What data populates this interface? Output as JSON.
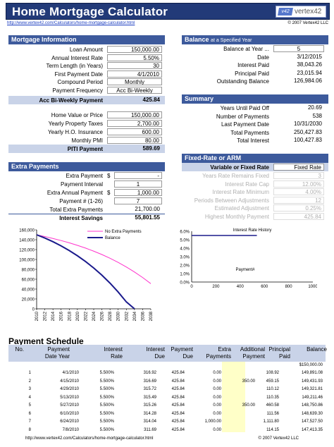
{
  "app": {
    "title": "Home Mortgage Calculator",
    "logo_text": "vertex42",
    "logo_mark": "v42",
    "url": "http://www.vertex42.com/Calculators/home-mortgage-calculator.html",
    "copyright": "© 2007 Vertex42 LLC"
  },
  "mortgage_info": {
    "header": "Mortgage Information",
    "rows": [
      {
        "label": "Loan Amount",
        "value": "150,000.00"
      },
      {
        "label": "Annual Interest Rate",
        "value": "5.50%"
      },
      {
        "label": "Term Length (in Years)",
        "value": "30"
      },
      {
        "label": "First Payment Date",
        "value": "4/1/2010"
      },
      {
        "label": "Compound Period",
        "value": "Monthly"
      },
      {
        "label": "Payment Frequency",
        "value": "Acc Bi-Weekly"
      }
    ],
    "payment_label": "Acc Bi-Weekly Payment",
    "payment_value": "425.84"
  },
  "home_costs": {
    "rows": [
      {
        "label": "Home Value or Price",
        "value": "150,000.00"
      },
      {
        "label": "Yearly Property Taxes",
        "value": "2,700.00"
      },
      {
        "label": "Yearly H.O. Insurance",
        "value": "600.00"
      },
      {
        "label": "Monthly PMI",
        "value": "80.00"
      }
    ],
    "piti_label": "PITI Payment",
    "piti_value": "589.69"
  },
  "extra_payments": {
    "header": "Extra Payments",
    "rows": [
      {
        "label": "Extra Payment",
        "currency": "$",
        "value": "-"
      },
      {
        "label": "Payment Interval",
        "currency": "",
        "value": "1"
      },
      {
        "label": "Extra Annual Payment",
        "currency": "$",
        "value": "1,000.00"
      },
      {
        "label": "Payment # (1-26)",
        "currency": "",
        "value": "7"
      }
    ],
    "total_label": "Total Extra Payments",
    "total_value": "21,700.00",
    "savings_label": "Interest Savings",
    "savings_value": "55,801.55"
  },
  "balance": {
    "header": "Balance",
    "header_small": "at a Specified Year",
    "rows": [
      {
        "label": "Balance at Year ...",
        "value": "5"
      },
      {
        "label": "Date",
        "value": "3/12/2015"
      },
      {
        "label": "Interest Paid",
        "value": "38,043.26"
      },
      {
        "label": "Principal Paid",
        "value": "23,015.94"
      },
      {
        "label": "Outstanding Balance",
        "value": "126,984.06"
      }
    ]
  },
  "summary": {
    "header": "Summary",
    "rows": [
      {
        "label": "Years Until Paid Off",
        "value": "20.69"
      },
      {
        "label": "Number of Payments",
        "value": "538"
      },
      {
        "label": "Last Payment Date",
        "value": "10/31/2030"
      },
      {
        "label": "Total Payments",
        "value": "250,427.83"
      },
      {
        "label": "Total Interest",
        "value": "100,427.83"
      }
    ]
  },
  "arm": {
    "header": "Fixed-Rate or ARM",
    "type_label": "Variable or Fixed Rate",
    "type_value": "Fixed Rate",
    "rows": [
      {
        "label": "Years Rate Remains Fixed",
        "value": "3"
      },
      {
        "label": "Interest Rate Cap",
        "value": "12.00%"
      },
      {
        "label": "Interest Rate Minimum",
        "value": "4.00%"
      },
      {
        "label": "Periods Between Adjustments",
        "value": "12"
      },
      {
        "label": "Estimated Adjustment",
        "value": "0.25%"
      },
      {
        "label": "Highest Monthly Payment",
        "value": "425.84"
      }
    ]
  },
  "chart_data": [
    {
      "type": "line",
      "title": "",
      "x": [
        "2010",
        "2012",
        "2014",
        "2016",
        "2018",
        "2020",
        "2022",
        "2024",
        "2026",
        "2028",
        "2030",
        "2032",
        "2034",
        "2036",
        "2038"
      ],
      "series": [
        {
          "name": "No Extra Payments",
          "color": "#ff33cc",
          "values": [
            150000,
            146500,
            142500,
            138300,
            133700,
            128600,
            123000,
            116800,
            110000,
            102400,
            94000,
            84800,
            74600,
            63400,
            51000
          ]
        },
        {
          "name": "Balance",
          "color": "#1a1a8c",
          "values": [
            150000,
            143500,
            136000,
            127500,
            118000,
            107500,
            95800,
            82700,
            68200,
            52000,
            34000,
            14000,
            0,
            null,
            null
          ]
        }
      ],
      "ylim": [
        0,
        160000
      ],
      "yticks": [
        "0",
        "20,000",
        "40,000",
        "60,000",
        "80,000",
        "100,000",
        "120,000",
        "140,000",
        "160,000"
      ],
      "legend": "top-right"
    },
    {
      "type": "line",
      "title": "Interest Rate History",
      "xlabel": "Payment#",
      "ylim": [
        0,
        6
      ],
      "yticks": [
        "0.0%",
        "1.0%",
        "2.0%",
        "3.0%",
        "4.0%",
        "5.0%",
        "6.0%"
      ],
      "xticks": [
        "0",
        "200",
        "400",
        "600",
        "800",
        "1000"
      ],
      "series": [
        {
          "name": "",
          "color": "#1a1a8c",
          "x": [
            0,
            538
          ],
          "values": [
            5.5,
            5.5
          ]
        }
      ]
    }
  ],
  "schedule": {
    "title": "Payment Schedule",
    "headers": [
      {
        "line1": "",
        "line2": "No."
      },
      {
        "line1": "Payment",
        "line2": "Date  Year"
      },
      {
        "line1": "Interest",
        "line2": "Rate"
      },
      {
        "line1": "Interest",
        "line2": "Due"
      },
      {
        "line1": "Payment",
        "line2": "Due"
      },
      {
        "line1": "Extra",
        "line2": "Payments"
      },
      {
        "line1": "Additional",
        "line2": "Payment"
      },
      {
        "line1": "Principal",
        "line2": "Paid"
      },
      {
        "line1": "",
        "line2": "Balance"
      }
    ],
    "opening_balance": "$150,000.00",
    "rows": [
      [
        "1",
        "4/1/2010",
        "5.500%",
        "316.92",
        "425.84",
        "0.00",
        "",
        "108.92",
        "149,891.08"
      ],
      [
        "2",
        "4/15/2010",
        "5.500%",
        "316.69",
        "425.84",
        "0.00",
        "350.00",
        "459.15",
        "149,431.93"
      ],
      [
        "3",
        "4/29/2010",
        "5.500%",
        "315.72",
        "425.84",
        "0.00",
        "",
        "110.12",
        "149,321.81"
      ],
      [
        "4",
        "5/13/2010",
        "5.500%",
        "315.49",
        "425.84",
        "0.00",
        "",
        "110.35",
        "149,211.46"
      ],
      [
        "5",
        "5/27/2010",
        "5.500%",
        "315.26",
        "425.84",
        "0.00",
        "350.00",
        "460.58",
        "148,750.86"
      ],
      [
        "6",
        "6/10/2010",
        "5.500%",
        "314.28",
        "425.84",
        "0.00",
        "",
        "111.56",
        "148,639.30"
      ],
      [
        "7",
        "6/24/2010",
        "5.500%",
        "314.04",
        "425.84",
        "1,000.00",
        "",
        "1,111.80",
        "147,527.50"
      ],
      [
        "8",
        "7/8/2010",
        "5.500%",
        "311.69",
        "425.84",
        "0.00",
        "",
        "114.15",
        "147,413.35"
      ]
    ]
  },
  "footer": {
    "url": "http://www.vertex42.com/Calculators/home-mortgage-calculator.html",
    "copyright": "© 2007 Vertex42 LLC"
  }
}
